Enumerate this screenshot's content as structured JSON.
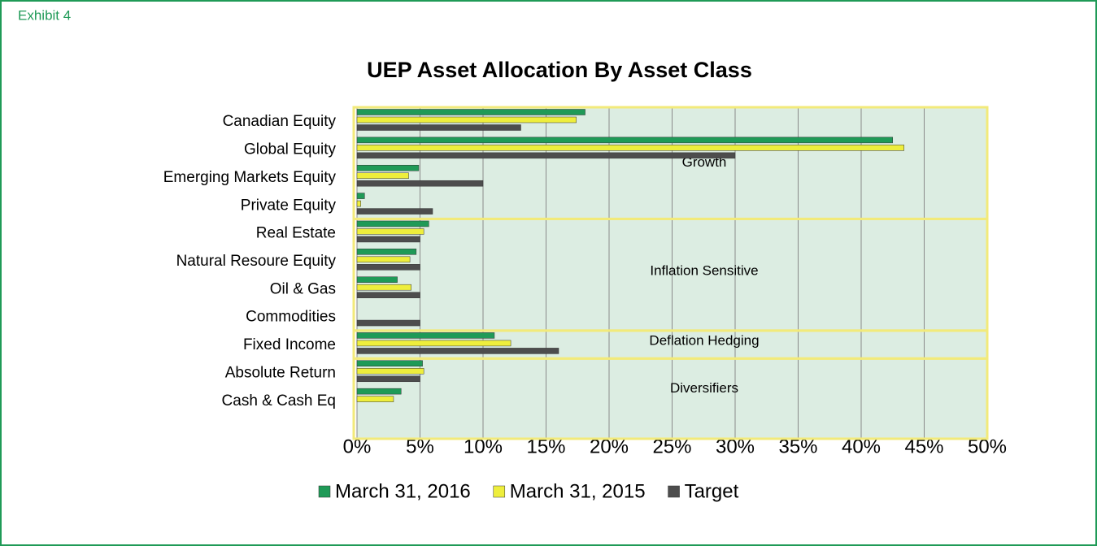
{
  "header": "Exhibit 4",
  "chart_data": {
    "type": "hbar",
    "title": "UEP Asset Allocation By Asset Class",
    "categories": [
      "Canadian Equity",
      "Global Equity",
      "Emerging Markets Equity",
      "Private Equity",
      "Real Estate",
      "Natural Resoure Equity",
      "Oil & Gas",
      "Commodities",
      "Fixed Income",
      "Absolute Return",
      "Cash & Cash Eq"
    ],
    "series": [
      {
        "name": "March 31, 2016",
        "color": "#1f9a57",
        "values": [
          18.1,
          42.5,
          4.9,
          0.6,
          5.7,
          4.7,
          3.2,
          0,
          10.9,
          5.2,
          3.5
        ]
      },
      {
        "name": "March 31, 2015",
        "color": "#eeee3c",
        "values": [
          17.4,
          43.4,
          4.1,
          0.3,
          5.3,
          4.2,
          4.3,
          0,
          12.2,
          5.3,
          2.9
        ]
      },
      {
        "name": "Target",
        "color": "#4d4d4d",
        "values": [
          13,
          30,
          10,
          6,
          5,
          5,
          5,
          5,
          16,
          5,
          0
        ]
      }
    ],
    "xlim": [
      0,
      50
    ],
    "xticks": [
      {
        "value": 0,
        "label": "0%"
      },
      {
        "value": 5,
        "label": "5%"
      },
      {
        "value": 10,
        "label": "10%"
      },
      {
        "value": 15,
        "label": "15%"
      },
      {
        "value": 20,
        "label": "20%"
      },
      {
        "value": 25,
        "label": "25%"
      },
      {
        "value": 30,
        "label": "30%"
      },
      {
        "value": 35,
        "label": "35%"
      },
      {
        "value": 40,
        "label": "40%"
      },
      {
        "value": 45,
        "label": "45%"
      },
      {
        "value": 50,
        "label": "50%"
      }
    ],
    "grid": true,
    "groups": [
      {
        "label": "Growth",
        "categories": [
          0,
          3
        ]
      },
      {
        "label": "Inflation Sensitive",
        "categories": [
          4,
          7
        ]
      },
      {
        "label": "Deflation Hedging",
        "categories": [
          8,
          8
        ]
      },
      {
        "label": "Diversifiers",
        "categories": [
          9,
          10
        ]
      }
    ]
  }
}
